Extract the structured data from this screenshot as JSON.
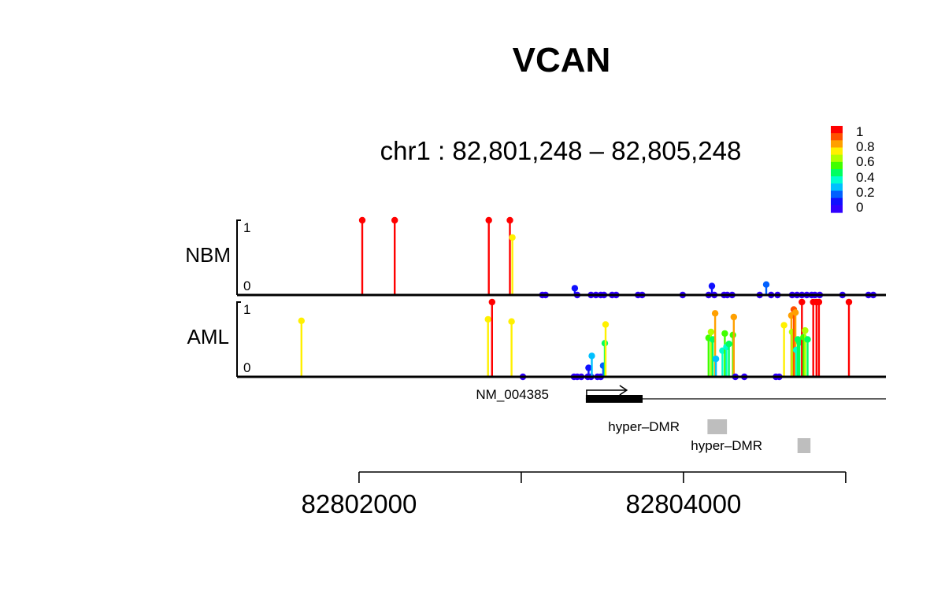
{
  "chart_data": {
    "type": "scatter",
    "title": "VCAN",
    "subtitle": "chr1 : 82,801,248 – 82,805,248",
    "region": {
      "start": 82801248,
      "end": 82805248
    },
    "x_ticks": [
      {
        "value": 82802000,
        "label": "82802000"
      },
      {
        "value": 82803000,
        "label": ""
      },
      {
        "value": 82804000,
        "label": "82804000"
      },
      {
        "value": 82805000,
        "label": ""
      }
    ],
    "y_range": [
      0,
      1
    ],
    "y_ticks": [
      {
        "value": 1,
        "label": "1"
      },
      {
        "value": 0,
        "label": "0"
      }
    ],
    "legend": {
      "placement": "top-right",
      "labels": [
        "1",
        "0.8",
        "0.6",
        "0.4",
        "0.2",
        "0"
      ],
      "colors": [
        "#FF0000",
        "#FF5000",
        "#FFA000",
        "#FFF000",
        "#B0FF00",
        "#40FF00",
        "#00FF60",
        "#00FFD0",
        "#00C0FF",
        "#0060FF",
        "#1010FF",
        "#3000FF"
      ]
    },
    "series": [
      {
        "name": "NBM",
        "points": [
          {
            "x": 82802020,
            "y": 1.0
          },
          {
            "x": 82802220,
            "y": 1.0
          },
          {
            "x": 82802800,
            "y": 1.0
          },
          {
            "x": 82802930,
            "y": 1.0
          },
          {
            "x": 82802945,
            "y": 0.77
          },
          {
            "x": 82803130,
            "y": 0.0
          },
          {
            "x": 82803150,
            "y": 0.0
          },
          {
            "x": 82803330,
            "y": 0.09
          },
          {
            "x": 82803345,
            "y": 0.0
          },
          {
            "x": 82803430,
            "y": 0.0
          },
          {
            "x": 82803460,
            "y": 0.0
          },
          {
            "x": 82803490,
            "y": 0.0
          },
          {
            "x": 82803510,
            "y": 0.0
          },
          {
            "x": 82803560,
            "y": 0.0
          },
          {
            "x": 82803585,
            "y": 0.0
          },
          {
            "x": 82803720,
            "y": 0.0
          },
          {
            "x": 82803745,
            "y": 0.0
          },
          {
            "x": 82803995,
            "y": 0.0
          },
          {
            "x": 82804155,
            "y": 0.0
          },
          {
            "x": 82804175,
            "y": 0.12
          },
          {
            "x": 82804190,
            "y": 0.0
          },
          {
            "x": 82804250,
            "y": 0.0
          },
          {
            "x": 82804270,
            "y": 0.0
          },
          {
            "x": 82804300,
            "y": 0.0
          },
          {
            "x": 82804470,
            "y": 0.0
          },
          {
            "x": 82804510,
            "y": 0.14
          },
          {
            "x": 82804540,
            "y": 0.0
          },
          {
            "x": 82804580,
            "y": 0.0
          },
          {
            "x": 82804670,
            "y": 0.0
          },
          {
            "x": 82804700,
            "y": 0.0
          },
          {
            "x": 82804730,
            "y": 0.0
          },
          {
            "x": 82804760,
            "y": 0.0
          },
          {
            "x": 82804790,
            "y": 0.0
          },
          {
            "x": 82804810,
            "y": 0.0
          },
          {
            "x": 82804840,
            "y": 0.0
          },
          {
            "x": 82804980,
            "y": 0.0
          },
          {
            "x": 82805140,
            "y": 0.0
          },
          {
            "x": 82805170,
            "y": 0.0
          }
        ]
      },
      {
        "name": "AML",
        "points": [
          {
            "x": 82801645,
            "y": 0.75
          },
          {
            "x": 82802795,
            "y": 0.77
          },
          {
            "x": 82802820,
            "y": 1.0
          },
          {
            "x": 82802940,
            "y": 0.74
          },
          {
            "x": 82803010,
            "y": 0.0
          },
          {
            "x": 82803325,
            "y": 0.0
          },
          {
            "x": 82803345,
            "y": 0.0
          },
          {
            "x": 82803370,
            "y": 0.0
          },
          {
            "x": 82803410,
            "y": 0.0
          },
          {
            "x": 82803415,
            "y": 0.12
          },
          {
            "x": 82803430,
            "y": 0.0
          },
          {
            "x": 82803435,
            "y": 0.28
          },
          {
            "x": 82803470,
            "y": 0.0
          },
          {
            "x": 82803490,
            "y": 0.0
          },
          {
            "x": 82803505,
            "y": 0.15
          },
          {
            "x": 82803515,
            "y": 0.45
          },
          {
            "x": 82803520,
            "y": 0.7
          },
          {
            "x": 82804155,
            "y": 0.52
          },
          {
            "x": 82804170,
            "y": 0.6
          },
          {
            "x": 82804180,
            "y": 0.5
          },
          {
            "x": 82804195,
            "y": 0.85
          },
          {
            "x": 82804200,
            "y": 0.24
          },
          {
            "x": 82804240,
            "y": 0.35
          },
          {
            "x": 82804255,
            "y": 0.58
          },
          {
            "x": 82804265,
            "y": 0.4
          },
          {
            "x": 82804280,
            "y": 0.44
          },
          {
            "x": 82804305,
            "y": 0.56
          },
          {
            "x": 82804310,
            "y": 0.8
          },
          {
            "x": 82804320,
            "y": 0.0
          },
          {
            "x": 82804375,
            "y": 0.0
          },
          {
            "x": 82804570,
            "y": 0.0
          },
          {
            "x": 82804590,
            "y": 0.0
          },
          {
            "x": 82804620,
            "y": 0.69
          },
          {
            "x": 82804665,
            "y": 0.82
          },
          {
            "x": 82804670,
            "y": 0.6
          },
          {
            "x": 82804680,
            "y": 0.9
          },
          {
            "x": 82804690,
            "y": 0.86
          },
          {
            "x": 82804695,
            "y": 0.36
          },
          {
            "x": 82804705,
            "y": 0.5
          },
          {
            "x": 82804715,
            "y": 0.46
          },
          {
            "x": 82804730,
            "y": 1.0
          },
          {
            "x": 82804740,
            "y": 0.53
          },
          {
            "x": 82804750,
            "y": 0.62
          },
          {
            "x": 82804765,
            "y": 0.5
          },
          {
            "x": 82804800,
            "y": 1.0
          },
          {
            "x": 82804820,
            "y": 1.0
          },
          {
            "x": 82804835,
            "y": 1.0
          },
          {
            "x": 82805020,
            "y": 1.0
          }
        ]
      }
    ],
    "gene": {
      "name": "NM_004385",
      "start": 82803398,
      "end": 82803748,
      "strand": "+"
    },
    "regions": [
      {
        "label": "hyper–DMR",
        "start": 82804148,
        "end": 82804268
      },
      {
        "label": "hyper–DMR",
        "start": 82804703,
        "end": 82804783
      }
    ]
  }
}
